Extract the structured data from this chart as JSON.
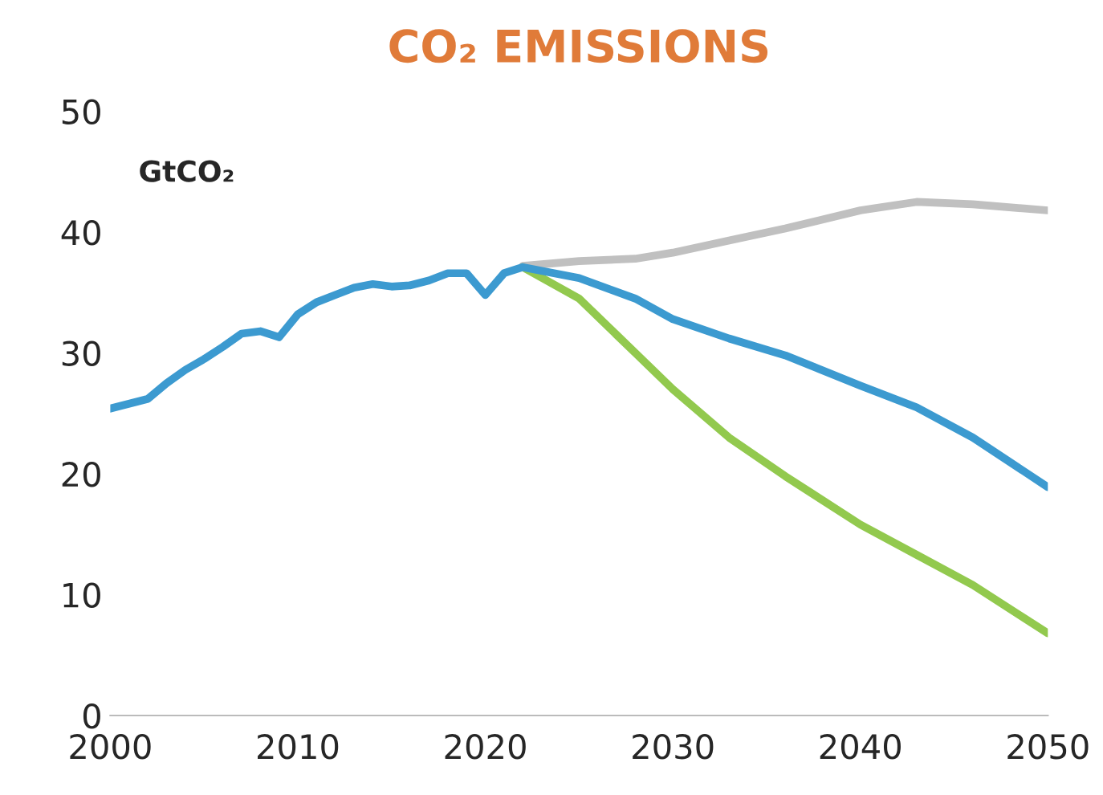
{
  "chart_data": {
    "type": "line",
    "title": "CO₂ EMISSIONS",
    "annotations": [
      {
        "text": "GtCO₂"
      }
    ],
    "xlim": [
      2000,
      2050
    ],
    "xticks": [
      2000,
      2010,
      2020,
      2030,
      2040,
      2050
    ],
    "ylim": [
      0,
      50
    ],
    "yticks": [
      0,
      10,
      20,
      30,
      40,
      50
    ],
    "grid": false,
    "series": [
      {
        "color": "#c0c0c0",
        "x": [
          2022,
          2025,
          2028,
          2030,
          2033,
          2036,
          2040,
          2043,
          2046,
          2050
        ],
        "values": [
          37.2,
          37.6,
          37.8,
          38.3,
          39.3,
          40.3,
          41.8,
          42.5,
          42.3,
          41.8
        ]
      },
      {
        "color": "#92c94e",
        "x": [
          2022,
          2025,
          2028,
          2030,
          2033,
          2036,
          2040,
          2043,
          2046,
          2050
        ],
        "values": [
          37.1,
          34.5,
          30.0,
          27.0,
          23.0,
          19.8,
          15.8,
          13.3,
          10.8,
          6.8
        ]
      },
      {
        "color": "#3c9ad0",
        "x": [
          2000,
          2001,
          2002,
          2003,
          2004,
          2005,
          2006,
          2007,
          2008,
          2009,
          2010,
          2011,
          2012,
          2013,
          2014,
          2015,
          2016,
          2017,
          2018,
          2019,
          2020,
          2021,
          2022,
          2025,
          2028,
          2030,
          2033,
          2036,
          2040,
          2043,
          2046,
          2050
        ],
        "values": [
          25.4,
          25.8,
          26.2,
          27.5,
          28.6,
          29.5,
          30.5,
          31.6,
          31.8,
          31.3,
          33.2,
          34.2,
          34.8,
          35.4,
          35.7,
          35.5,
          35.6,
          36.0,
          36.6,
          36.6,
          34.8,
          36.6,
          37.1,
          36.2,
          34.5,
          32.8,
          31.2,
          29.8,
          27.3,
          25.5,
          23.0,
          18.9
        ]
      }
    ]
  }
}
